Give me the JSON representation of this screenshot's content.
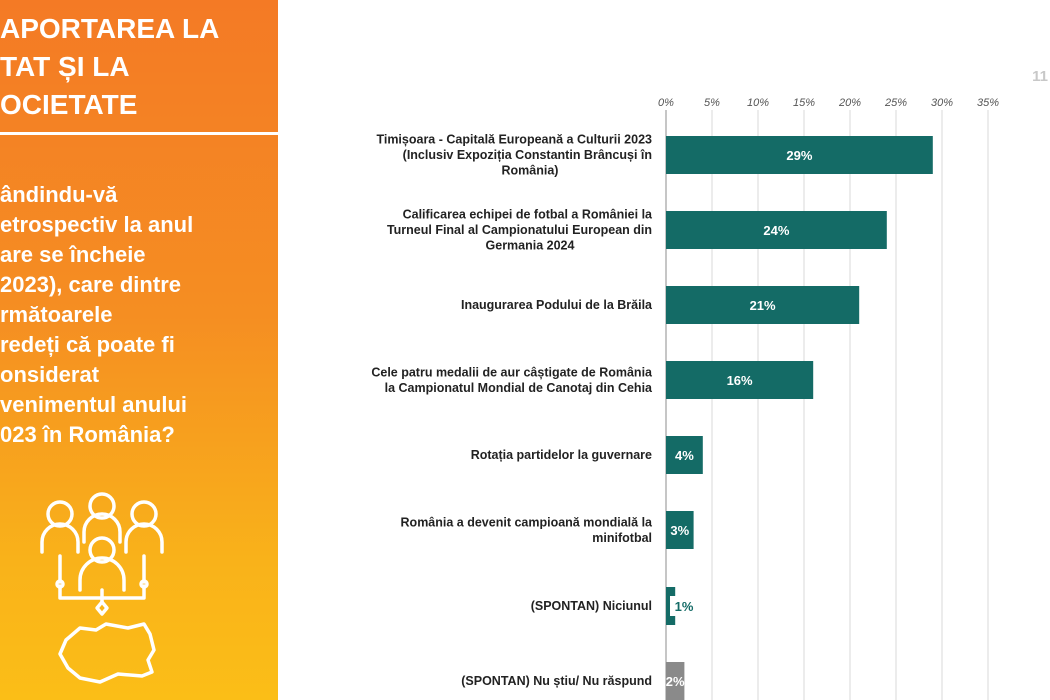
{
  "panel": {
    "title": "APORTAREA LA\nTAT ȘI LA\nOCIETATE",
    "question": "ândindu-vă\netrospectiv la anul\nare se încheie\n2023), care dintre\nrmătoarele\nredeți că poate fi\nonsiderat\nvenimentul anului\n023 în România?"
  },
  "page_number": "11",
  "colors": {
    "bar": "#146b66",
    "bar_unknown": "#8a8a8a",
    "panel_top": "#f47a25",
    "panel_bottom": "#fbbe17"
  },
  "chart_data": {
    "type": "bar",
    "orientation": "horizontal",
    "title": "",
    "xlabel": "",
    "ylabel": "",
    "xlim": [
      0,
      35
    ],
    "ticks": [
      "0%",
      "5%",
      "10%",
      "15%",
      "20%",
      "25%",
      "30%",
      "35%"
    ],
    "tick_values": [
      0,
      5,
      10,
      15,
      20,
      25,
      30,
      35
    ],
    "grid": true,
    "categories": [
      "Timișoara - Capitală Europeană a Culturii 2023 (Inclusiv Expoziția  Constantin Brâncuși în România)",
      "Calificarea echipei de fotbal a României la Turneul Final al Campionatului European din Germania 2024",
      "Inaugurarea Podului de la Brăila",
      "Cele patru medalii de aur câștigate de România la Campionatul Mondial de Canotaj din Cehia",
      "Rotația partidelor la guvernare",
      "România a devenit campioană mondială la minifotbal",
      "(SPONTAN) Niciunul",
      "(SPONTAN) Nu știu/ Nu răspund"
    ],
    "label_lines": [
      [
        "Timișoara - Capitală Europeană a Culturii 2023",
        "(Inclusiv Expoziția  Constantin Brâncuși în",
        "România)"
      ],
      [
        "Calificarea echipei de fotbal a României la",
        "Turneul Final al Campionatului European din",
        "Germania 2024"
      ],
      [
        "Inaugurarea Podului de la Brăila"
      ],
      [
        "Cele patru medalii de aur câștigate de România",
        "la Campionatul Mondial de Canotaj din Cehia"
      ],
      [
        "Rotația partidelor la guvernare"
      ],
      [
        "România a devenit campioană mondială la",
        "minifotbal"
      ],
      [
        "(SPONTAN) Niciunul"
      ],
      [
        "(SPONTAN) Nu știu/ Nu răspund"
      ]
    ],
    "values": [
      29,
      24,
      21,
      16,
      4,
      3,
      1,
      2
    ],
    "data_labels": [
      "29%",
      "24%",
      "21%",
      "16%",
      "4%",
      "3%",
      "1%",
      "2%"
    ]
  }
}
